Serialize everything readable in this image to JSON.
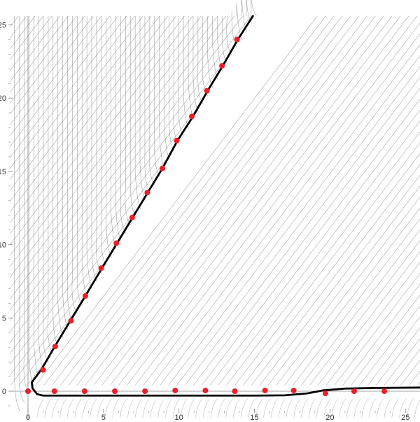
{
  "chart_data": {
    "type": "scatter",
    "title": "",
    "xlabel": "",
    "ylabel": "",
    "xlim": [
      -1.2,
      26.2
    ],
    "ylim": [
      -1.9,
      25.6
    ],
    "grid": false,
    "legend": "none",
    "x_ticks": [
      {
        "value": 0,
        "label": "0"
      },
      {
        "value": 5,
        "label": "5"
      },
      {
        "value": 10,
        "label": "10"
      },
      {
        "value": 15,
        "label": "15"
      },
      {
        "value": 20,
        "label": "20"
      },
      {
        "value": 25,
        "label": "25"
      }
    ],
    "y_ticks": [
      {
        "value": 0,
        "label": "0"
      },
      {
        "value": 5,
        "label": "5"
      },
      {
        "value": 10,
        "label": "10"
      },
      {
        "value": 15,
        "label": "15"
      },
      {
        "value": 20,
        "label": "20"
      },
      {
        "value": 25,
        "label": "25"
      }
    ],
    "colors": {
      "points": "#e8202a",
      "curve": "#000000",
      "streamlines": "#8a8a8a",
      "axes": "#888888"
    },
    "boundary_curve": [
      [
        14.9,
        25.6
      ],
      [
        13.9,
        24.0
      ],
      [
        12.9,
        22.2
      ],
      [
        11.9,
        20.5
      ],
      [
        10.9,
        18.7
      ],
      [
        9.9,
        17.1
      ],
      [
        8.9,
        15.2
      ],
      [
        7.9,
        13.5
      ],
      [
        6.9,
        11.8
      ],
      [
        5.9,
        10.1
      ],
      [
        4.9,
        8.4
      ],
      [
        3.8,
        6.5
      ],
      [
        2.8,
        4.8
      ],
      [
        1.8,
        3.1
      ],
      [
        0.9,
        1.5
      ],
      [
        0.25,
        0.6
      ],
      [
        0.3,
        0.2
      ],
      [
        0.6,
        -0.2
      ],
      [
        1.0,
        -0.3
      ],
      [
        1.8,
        -0.3
      ],
      [
        5,
        -0.3
      ],
      [
        10,
        -0.3
      ],
      [
        15,
        -0.3
      ],
      [
        17,
        -0.28
      ],
      [
        18.5,
        -0.15
      ],
      [
        19.5,
        0.05
      ],
      [
        21,
        0.18
      ],
      [
        23,
        0.22
      ],
      [
        26.2,
        0.25
      ]
    ],
    "points": [
      {
        "x": 0.0,
        "y": 0.0
      },
      {
        "x": 1.0,
        "y": 1.45
      },
      {
        "x": 1.8,
        "y": 3.05
      },
      {
        "x": 2.85,
        "y": 4.8
      },
      {
        "x": 3.8,
        "y": 6.5
      },
      {
        "x": 4.85,
        "y": 8.4
      },
      {
        "x": 5.85,
        "y": 10.1
      },
      {
        "x": 6.9,
        "y": 11.85
      },
      {
        "x": 7.9,
        "y": 13.55
      },
      {
        "x": 8.9,
        "y": 15.2
      },
      {
        "x": 9.85,
        "y": 17.1
      },
      {
        "x": 10.85,
        "y": 18.75
      },
      {
        "x": 11.85,
        "y": 20.5
      },
      {
        "x": 12.85,
        "y": 22.2
      },
      {
        "x": 13.85,
        "y": 24.0
      },
      {
        "x": 1.75,
        "y": 0.0
      },
      {
        "x": 3.75,
        "y": 0.0
      },
      {
        "x": 5.75,
        "y": 0.0
      },
      {
        "x": 7.75,
        "y": 0.0
      },
      {
        "x": 9.75,
        "y": 0.05
      },
      {
        "x": 11.75,
        "y": 0.05
      },
      {
        "x": 13.7,
        "y": 0.0
      },
      {
        "x": 15.7,
        "y": 0.05
      },
      {
        "x": 17.6,
        "y": 0.05
      },
      {
        "x": 19.7,
        "y": -0.15
      },
      {
        "x": 21.6,
        "y": 0.0
      },
      {
        "x": 23.6,
        "y": 0.0
      }
    ]
  }
}
